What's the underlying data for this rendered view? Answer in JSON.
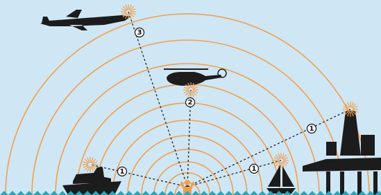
{
  "markers": [
    {
      "label": "3"
    },
    {
      "label": "2"
    },
    {
      "label": "1"
    },
    {
      "label": "1"
    },
    {
      "label": "1"
    }
  ]
}
